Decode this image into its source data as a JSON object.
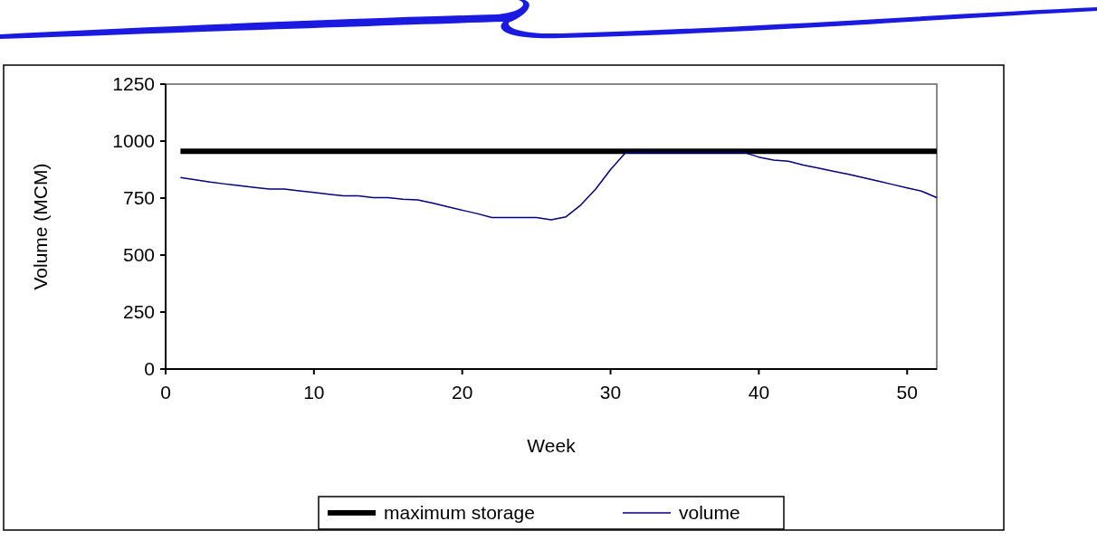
{
  "chart_data": {
    "type": "line",
    "xlabel": "Week",
    "ylabel": "Volume (MCM)",
    "x": [
      1,
      2,
      3,
      4,
      5,
      6,
      7,
      8,
      9,
      10,
      11,
      12,
      13,
      14,
      15,
      16,
      17,
      18,
      19,
      20,
      21,
      22,
      23,
      24,
      25,
      26,
      27,
      28,
      29,
      30,
      31,
      32,
      33,
      34,
      35,
      36,
      37,
      38,
      39,
      40,
      41,
      42,
      43,
      44,
      45,
      46,
      47,
      48,
      49,
      50,
      51,
      52
    ],
    "series": [
      {
        "name": "maximum storage",
        "color": "#000000",
        "values": [
          955,
          955,
          955,
          955,
          955,
          955,
          955,
          955,
          955,
          955,
          955,
          955,
          955,
          955,
          955,
          955,
          955,
          955,
          955,
          955,
          955,
          955,
          955,
          955,
          955,
          955,
          955,
          955,
          955,
          955,
          955,
          955,
          955,
          955,
          955,
          955,
          955,
          955,
          955,
          955,
          955,
          955,
          955,
          955,
          955,
          955,
          955,
          955,
          955,
          955,
          955,
          955
        ]
      },
      {
        "name": "volume",
        "color": "#000080",
        "values": [
          840,
          830,
          820,
          812,
          805,
          797,
          790,
          790,
          782,
          775,
          767,
          760,
          760,
          752,
          752,
          745,
          742,
          728,
          712,
          697,
          682,
          665,
          665,
          665,
          665,
          655,
          668,
          720,
          790,
          875,
          948,
          950,
          950,
          950,
          950,
          950,
          950,
          950,
          950,
          930,
          917,
          912,
          895,
          882,
          868,
          855,
          840,
          825,
          810,
          795,
          780,
          752
        ]
      }
    ],
    "xlim": [
      0,
      52
    ],
    "xticks": [
      0,
      10,
      20,
      30,
      40,
      50
    ],
    "ylim": [
      0,
      1250
    ],
    "yticks": [
      0,
      250,
      500,
      750,
      1000,
      1250
    ],
    "grid": false,
    "legend": "bottom",
    "marker": "none",
    "line_style": "solid"
  }
}
